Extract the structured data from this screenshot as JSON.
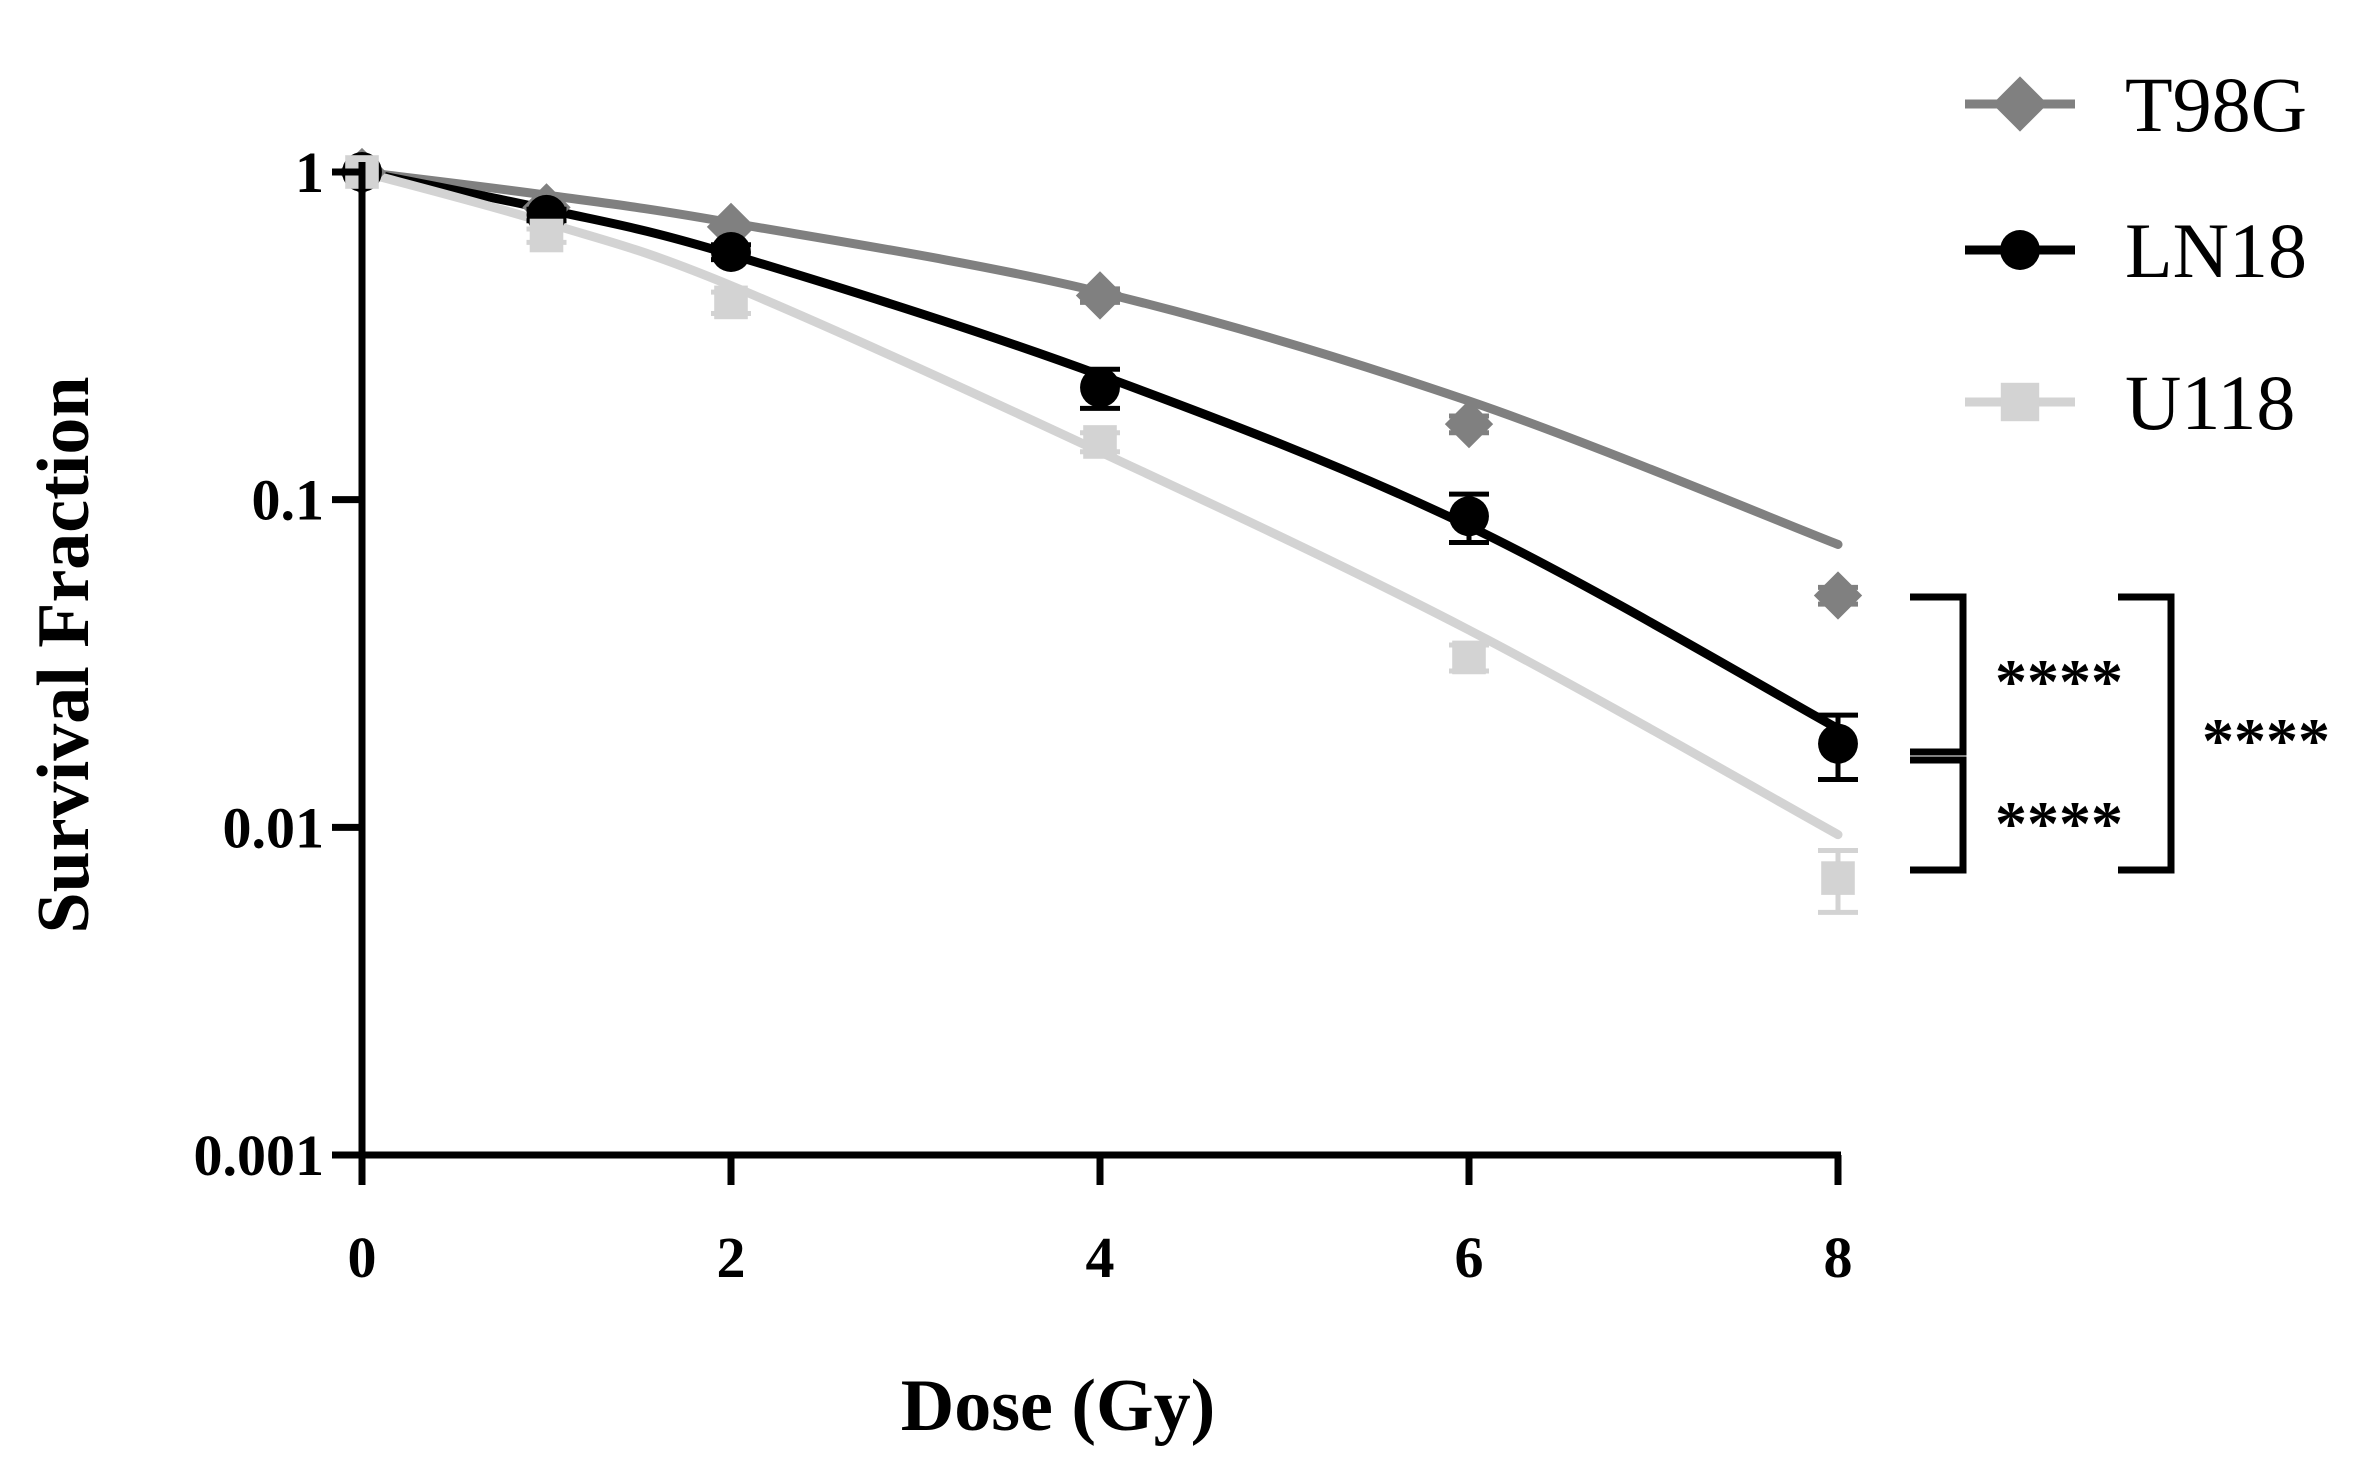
{
  "chart_data": {
    "type": "scatter",
    "title": "",
    "xlabel": "Dose (Gy)",
    "ylabel": "Survival Fraction",
    "xlim": [
      0,
      8
    ],
    "ylim": [
      0.001,
      1
    ],
    "yscale": "log",
    "x_ticks": [
      "0",
      "2",
      "4",
      "6",
      "8"
    ],
    "x_tick_values": [
      0,
      2,
      4,
      6,
      8
    ],
    "y_ticks": [
      "1",
      "0.1",
      "0.01",
      "0.001"
    ],
    "y_tick_values": [
      1,
      0.1,
      0.01,
      0.001
    ],
    "legend_position": "top-right",
    "series": [
      {
        "name": "T98G",
        "color": "#808080",
        "marker": "diamond",
        "x": [
          0,
          1,
          2,
          4,
          6,
          8
        ],
        "y": [
          1,
          0.78,
          0.68,
          0.42,
          0.17,
          0.051
        ],
        "err": [
          0,
          0,
          0,
          0.02,
          0.01,
          0.003
        ],
        "fit": [
          1,
          0.85,
          0.7,
          0.43,
          0.2,
          0.073
        ]
      },
      {
        "name": "LN18",
        "color": "#000000",
        "marker": "circle",
        "x": [
          0,
          1,
          2,
          4,
          6,
          8
        ],
        "y": [
          1,
          0.74,
          0.57,
          0.22,
          0.089,
          0.018
        ],
        "err": [
          0,
          0.03,
          0.03,
          0.03,
          0.015,
          0.004
        ],
        "fit": [
          1,
          0.77,
          0.56,
          0.24,
          0.083,
          0.02
        ]
      },
      {
        "name": "U118",
        "color": "#d3d3d3",
        "marker": "square",
        "x": [
          0,
          1,
          2,
          4,
          6,
          8
        ],
        "y": [
          1,
          0.64,
          0.4,
          0.15,
          0.033,
          0.007
        ],
        "err": [
          0,
          0.03,
          0.03,
          0.01,
          0.003,
          0.0015
        ],
        "fit": [
          1,
          0.7,
          0.45,
          0.14,
          0.04,
          0.0095
        ]
      }
    ],
    "annotations": [
      {
        "label": "****",
        "between": [
          "T98G",
          "LN18"
        ]
      },
      {
        "label": "****",
        "between": [
          "LN18",
          "U118"
        ]
      },
      {
        "label": "****",
        "between": [
          "T98G",
          "U118"
        ]
      }
    ]
  }
}
